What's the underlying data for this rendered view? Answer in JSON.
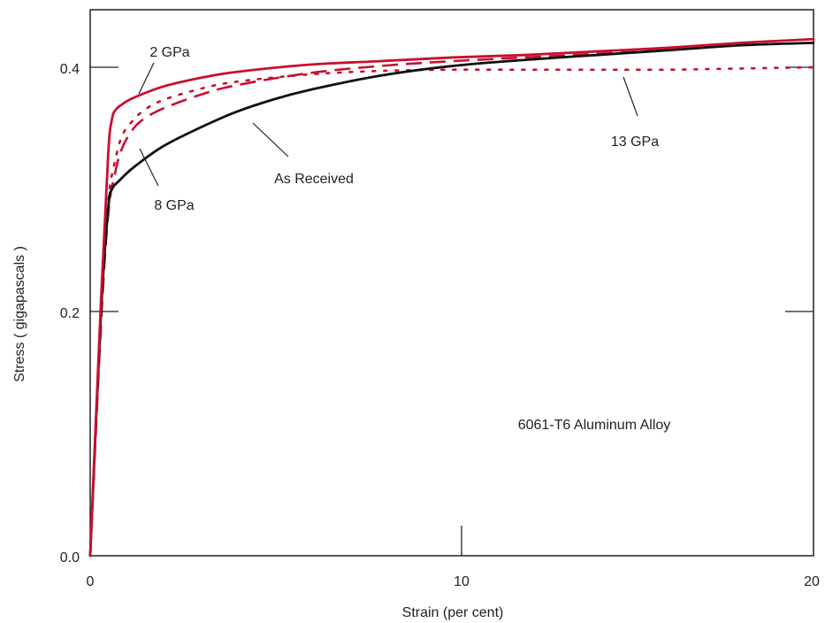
{
  "chart_data": {
    "type": "line",
    "xlabel": "Strain (per cent)",
    "ylabel": "Stress ( gigapascals )",
    "xlim": [
      0,
      20
    ],
    "ylim": [
      0,
      0.44
    ],
    "x_ticks": [
      {
        "value": 0,
        "label": "0"
      },
      {
        "value": 10,
        "label": "10"
      },
      {
        "value": 20,
        "label": "20"
      }
    ],
    "y_ticks": [
      {
        "value": 0,
        "label": "0.0"
      },
      {
        "value": 0.2,
        "label": "0.2"
      },
      {
        "value": 0.4,
        "label": "0.4"
      }
    ],
    "grid": false,
    "annotation_text": "6061-T6 Aluminum Alloy",
    "colors": {
      "red": "#c8102e",
      "black": "#111111",
      "axis": "#222222"
    },
    "series": [
      {
        "name": "As Received",
        "color": "#111111",
        "style": "solid",
        "x": [
          0,
          0.3,
          0.5,
          0.6,
          0.8,
          1.2,
          2,
          3,
          4,
          5,
          6,
          8,
          10,
          12,
          14,
          16,
          18,
          20
        ],
        "y": [
          0,
          0.2,
          0.285,
          0.3,
          0.307,
          0.318,
          0.335,
          0.35,
          0.363,
          0.373,
          0.381,
          0.393,
          0.401,
          0.406,
          0.41,
          0.414,
          0.418,
          0.42
        ]
      },
      {
        "name": "2 GPa",
        "color": "#c8102e",
        "style": "solid",
        "x": [
          0,
          0.3,
          0.5,
          0.6,
          0.7,
          0.9,
          1.2,
          2,
          3,
          4,
          6,
          8,
          10,
          12,
          14,
          16,
          18,
          20
        ],
        "y": [
          0,
          0.21,
          0.33,
          0.357,
          0.365,
          0.37,
          0.375,
          0.384,
          0.391,
          0.396,
          0.402,
          0.405,
          0.408,
          0.41,
          0.413,
          0.416,
          0.42,
          0.423
        ]
      },
      {
        "name": "8 GPa",
        "color": "#c8102e",
        "style": "dashed",
        "x": [
          0,
          0.3,
          0.5,
          0.7,
          0.9,
          1.2,
          1.5,
          2,
          3,
          4,
          6,
          8,
          10,
          12,
          14,
          16,
          18,
          20
        ],
        "y": [
          0,
          0.19,
          0.28,
          0.315,
          0.335,
          0.35,
          0.358,
          0.366,
          0.377,
          0.385,
          0.395,
          0.401,
          0.405,
          0.408,
          0.411,
          0.414,
          0.418,
          0.42
        ]
      },
      {
        "name": "13 GPa",
        "color": "#c8102e",
        "style": "dotted",
        "x": [
          0,
          0.3,
          0.5,
          0.7,
          0.9,
          1.2,
          1.5,
          2,
          3,
          4,
          6,
          8,
          10,
          12,
          14,
          16,
          18,
          20
        ],
        "y": [
          0,
          0.2,
          0.29,
          0.325,
          0.345,
          0.357,
          0.365,
          0.373,
          0.382,
          0.388,
          0.394,
          0.397,
          0.398,
          0.398,
          0.398,
          0.398,
          0.399,
          0.4
        ]
      }
    ],
    "labels": [
      {
        "text": "2 GPa",
        "anchor_x": 1.3,
        "anchor_y": 0.379
      },
      {
        "text": "8 GPa",
        "anchor_x": 1.7,
        "anchor_y": 0.33
      },
      {
        "text": "As Received",
        "anchor_x": 4.6,
        "anchor_y": 0.36
      },
      {
        "text": "13 GPa",
        "anchor_x": 14.7,
        "anchor_y": 0.395
      }
    ]
  }
}
